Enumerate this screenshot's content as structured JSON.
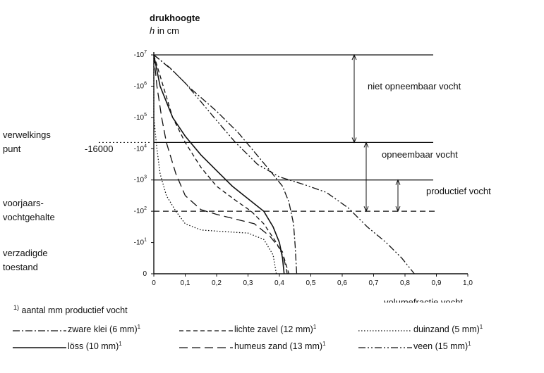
{
  "chart_data": {
    "type": "line",
    "title": "drukhoogte",
    "ylabel_var": "h",
    "ylabel_unit": "in cm",
    "xlabel": "volumefractie vocht",
    "xlim": [
      0,
      1.0
    ],
    "x_ticks": [
      "0",
      "0,1",
      "0,2",
      "0,3",
      "0,4",
      "0,5",
      "0,6",
      "0,7",
      "0,8",
      "0,9",
      "1,0"
    ],
    "y_ticks": [
      {
        "base": "-10",
        "exp": "7",
        "value": 7
      },
      {
        "base": "-10",
        "exp": "6",
        "value": 6
      },
      {
        "base": "-10",
        "exp": "5",
        "value": 5
      },
      {
        "base": "-10",
        "exp": "4",
        "value": 4
      },
      {
        "base": "-10",
        "exp": "3",
        "value": 3
      },
      {
        "base": "-10",
        "exp": "2",
        "value": 2
      },
      {
        "base": "-10",
        "exp": "1",
        "value": 1
      },
      {
        "base": "0",
        "exp": "",
        "value": 0
      }
    ],
    "hlines": [
      {
        "value": 7,
        "style": "solid"
      },
      {
        "value": 4.2,
        "style": "solid"
      },
      {
        "value": 3,
        "style": "solid"
      },
      {
        "value": 2,
        "style": "dashed"
      }
    ],
    "left_labels": [
      {
        "lines": [
          "verwelkings",
          "punt"
        ],
        "value": 4.2
      },
      {
        "lines": [
          "voorjaars-",
          "vochtgehalte"
        ],
        "value": 2
      },
      {
        "lines": [
          "verzadigde",
          "toestand"
        ],
        "value": 0
      }
    ],
    "wilting_value_label": "-16000",
    "ranges": [
      {
        "label": "niet opneembaar vocht",
        "from": 7,
        "to": 4.2
      },
      {
        "label": "opneembaar vocht",
        "from": 4.2,
        "to": 2
      },
      {
        "label": "productief vocht",
        "from": 3,
        "to": 2
      }
    ],
    "series": [
      {
        "name": "zware klei (6 mm)",
        "sup": "1",
        "style": "dashdot",
        "points": [
          [
            0.0,
            7
          ],
          [
            0.06,
            6.5
          ],
          [
            0.12,
            5.9
          ],
          [
            0.2,
            5.2
          ],
          [
            0.27,
            4.5
          ],
          [
            0.32,
            3.9
          ],
          [
            0.37,
            3.3
          ],
          [
            0.41,
            2.8
          ],
          [
            0.43,
            2.3
          ],
          [
            0.445,
            1.6
          ],
          [
            0.45,
            0.9
          ],
          [
            0.455,
            0
          ]
        ]
      },
      {
        "name": "lichte zavel (12 mm)",
        "sup": "1",
        "style": "dashed",
        "points": [
          [
            0.0,
            7
          ],
          [
            0.03,
            6
          ],
          [
            0.06,
            5
          ],
          [
            0.1,
            4.2
          ],
          [
            0.15,
            3.4
          ],
          [
            0.2,
            2.8
          ],
          [
            0.26,
            2.35
          ],
          [
            0.31,
            2.0
          ],
          [
            0.35,
            1.6
          ],
          [
            0.39,
            1.0
          ],
          [
            0.415,
            0.5
          ],
          [
            0.43,
            0
          ]
        ]
      },
      {
        "name": "duinzand (5 mm)",
        "sup": "1",
        "style": "dotted",
        "points": [
          [
            0.0,
            7
          ],
          [
            0.0,
            5
          ],
          [
            0.01,
            4
          ],
          [
            0.02,
            3.2
          ],
          [
            0.04,
            2.5
          ],
          [
            0.07,
            2.0
          ],
          [
            0.1,
            1.6
          ],
          [
            0.15,
            1.4
          ],
          [
            0.22,
            1.35
          ],
          [
            0.3,
            1.3
          ],
          [
            0.35,
            1.1
          ],
          [
            0.38,
            0.6
          ],
          [
            0.39,
            0
          ]
        ]
      },
      {
        "name": "löss (10 mm)",
        "sup": "1",
        "style": "solid",
        "points": [
          [
            0.0,
            7
          ],
          [
            0.02,
            6
          ],
          [
            0.06,
            5
          ],
          [
            0.1,
            4.4
          ],
          [
            0.15,
            3.8
          ],
          [
            0.2,
            3.3
          ],
          [
            0.25,
            2.8
          ],
          [
            0.3,
            2.4
          ],
          [
            0.35,
            2.0
          ],
          [
            0.38,
            1.5
          ],
          [
            0.4,
            1.0
          ],
          [
            0.41,
            0.5
          ],
          [
            0.415,
            0
          ]
        ]
      },
      {
        "name": "humeus zand (13 mm)",
        "sup": "1",
        "style": "longdash",
        "points": [
          [
            0.0,
            7
          ],
          [
            0.01,
            6
          ],
          [
            0.025,
            5
          ],
          [
            0.04,
            4.2
          ],
          [
            0.07,
            3.2
          ],
          [
            0.1,
            2.5
          ],
          [
            0.15,
            2.05
          ],
          [
            0.2,
            1.9
          ],
          [
            0.26,
            1.75
          ],
          [
            0.32,
            1.6
          ],
          [
            0.37,
            1.2
          ],
          [
            0.41,
            0.7
          ],
          [
            0.425,
            0
          ]
        ]
      },
      {
        "name": "veen (15 mm)",
        "sup": "1",
        "style": "dashdotdot",
        "points": [
          [
            0.0,
            7
          ],
          [
            0.05,
            6.6
          ],
          [
            0.1,
            6.1
          ],
          [
            0.15,
            5.5
          ],
          [
            0.2,
            4.9
          ],
          [
            0.26,
            4.2
          ],
          [
            0.33,
            3.5
          ],
          [
            0.4,
            3.1
          ],
          [
            0.48,
            2.85
          ],
          [
            0.55,
            2.6
          ],
          [
            0.62,
            2.1
          ],
          [
            0.68,
            1.5
          ],
          [
            0.74,
            1.0
          ],
          [
            0.79,
            0.5
          ],
          [
            0.83,
            0
          ]
        ]
      }
    ]
  },
  "footnote": {
    "sup": "1)",
    "text": "aantal mm productief vocht"
  }
}
